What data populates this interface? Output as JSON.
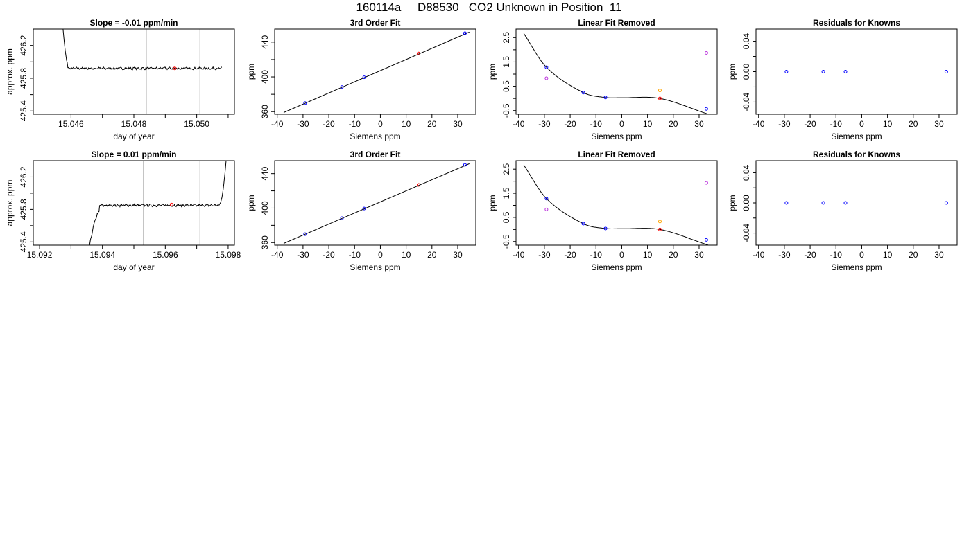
{
  "figure": {
    "title": "160114a     D88530   CO2 Unknown in Position  11"
  },
  "colors": {
    "blue": "#0000ff",
    "red": "#ff0000",
    "orange": "#ffa500",
    "magenta": "#bb33dd",
    "gray": "#bebebe",
    "black": "#000000"
  },
  "chart_data": [
    {
      "panel": "r1c1",
      "type": "line",
      "title": "Slope =  -0.01  ppm/min",
      "xlabel": "day of year",
      "ylabel": "approx. ppm",
      "xlim": [
        15.0448,
        15.0512
      ],
      "ylim": [
        425.36,
        426.4
      ],
      "xticks": [
        15.046,
        15.047,
        15.048,
        15.049,
        15.05,
        15.051
      ],
      "xtick_labels": [
        "15.046",
        "",
        "15.048",
        "",
        "15.050",
        ""
      ],
      "yticks": [
        425.4,
        425.6,
        425.8,
        426.0,
        426.2
      ],
      "ytick_labels": [
        "425.4",
        "",
        "425.8",
        "",
        "426.2"
      ],
      "vlines": [
        15.0484,
        15.0501
      ],
      "line": {
        "x0": 15.0456,
        "x1": 15.0508,
        "rise": {
          "to": 15.0459,
          "level": 425.92
        },
        "fall": {
          "from": 15.0508,
          "level": 425.92
        },
        "plateau": 425.92,
        "noise": 0.012
      },
      "marker": {
        "x": 15.0493,
        "y": 425.92,
        "color": "red"
      }
    },
    {
      "panel": "r1c2",
      "type": "scatter",
      "title": "3rd Order Fit",
      "xlabel": "Siemens ppm",
      "ylabel": "ppm",
      "xlim": [
        -41,
        37
      ],
      "ylim": [
        357,
        455
      ],
      "xticks": [
        -40,
        -30,
        -20,
        -10,
        0,
        10,
        20,
        30
      ],
      "yticks": [
        360,
        380,
        400,
        420,
        440
      ],
      "ytick_labels": [
        "360",
        "",
        "400",
        "",
        "440"
      ],
      "fit_line": [
        [
          -37.5,
          359
        ],
        [
          34.5,
          451.5
        ]
      ],
      "points": [
        {
          "x": -29.2,
          "y": 369.8,
          "color": "blue"
        },
        {
          "x": -14.9,
          "y": 388.3,
          "color": "blue"
        },
        {
          "x": -6.3,
          "y": 399.5,
          "color": "blue"
        },
        {
          "x": 14.8,
          "y": 426.9,
          "color": "red"
        },
        {
          "x": 32.8,
          "y": 450.2,
          "color": "blue"
        }
      ]
    },
    {
      "panel": "r1c3",
      "type": "scatter",
      "title": "Linear Fit Removed",
      "xlabel": "Siemens ppm",
      "ylabel": "ppm",
      "xlim": [
        -41,
        37
      ],
      "ylim": [
        -0.65,
        2.85
      ],
      "xticks": [
        -40,
        -30,
        -20,
        -10,
        0,
        10,
        20,
        30
      ],
      "yticks": [
        -0.5,
        0,
        0.5,
        1,
        1.5,
        2,
        2.5
      ],
      "ytick_labels": [
        "-0.5",
        "",
        "0.5",
        "",
        "1.5",
        "",
        "2.5"
      ],
      "curve": {
        "xmin": -38,
        "xmax": 33.5,
        "knots": [
          [
            -38,
            2.67
          ],
          [
            -29.2,
            1.28
          ],
          [
            -14.9,
            0.24
          ],
          [
            -6.3,
            0.04
          ],
          [
            0,
            0.03
          ],
          [
            14.8,
            0.0
          ],
          [
            32.8,
            -0.62
          ]
        ]
      },
      "points": [
        {
          "x": -29.2,
          "y": 1.28,
          "color": "blue"
        },
        {
          "x": -29.2,
          "y": 0.83,
          "color": "magenta"
        },
        {
          "x": -14.9,
          "y": 0.24,
          "color": "blue"
        },
        {
          "x": -6.3,
          "y": 0.04,
          "color": "blue"
        },
        {
          "x": 14.8,
          "y": 0.33,
          "color": "orange"
        },
        {
          "x": 14.8,
          "y": 0.0,
          "color": "red"
        },
        {
          "x": 32.8,
          "y": 1.87,
          "color": "magenta"
        },
        {
          "x": 32.8,
          "y": -0.43,
          "color": "blue"
        }
      ]
    },
    {
      "panel": "r1c4",
      "type": "scatter",
      "title": "Residuals for Knowns",
      "xlabel": "Siemens ppm",
      "ylabel": "ppm",
      "xlim": [
        -41,
        37
      ],
      "ylim": [
        -0.056,
        0.056
      ],
      "xticks": [
        -40,
        -30,
        -20,
        -10,
        0,
        10,
        20,
        30
      ],
      "yticks": [
        -0.04,
        -0.02,
        0.0,
        0.02,
        0.04
      ],
      "ytick_labels": [
        "-0.04",
        "",
        "0.00",
        "",
        "0.04"
      ],
      "points": [
        {
          "x": -29.2,
          "y": 0.0,
          "color": "blue"
        },
        {
          "x": -14.9,
          "y": 0.0,
          "color": "blue"
        },
        {
          "x": -6.3,
          "y": 0.0,
          "color": "blue"
        },
        {
          "x": 32.8,
          "y": 0.0,
          "color": "blue"
        }
      ]
    },
    {
      "panel": "r2c1",
      "type": "line",
      "title": "Slope =  0.01  ppm/min",
      "xlabel": "day of year",
      "ylabel": "approx. ppm",
      "xlim": [
        15.0918,
        15.0982
      ],
      "ylim": [
        425.36,
        426.4
      ],
      "xticks": [
        15.092,
        15.093,
        15.094,
        15.095,
        15.096,
        15.097,
        15.098
      ],
      "xtick_labels": [
        "15.092",
        "",
        "15.094",
        "",
        "15.096",
        "",
        "15.098"
      ],
      "yticks": [
        425.4,
        425.6,
        425.8,
        426.0,
        426.2
      ],
      "ytick_labels": [
        "425.4",
        "",
        "425.8",
        "",
        "426.2"
      ],
      "vlines": [
        15.0953,
        15.0971
      ],
      "line": {
        "x0": 15.0933,
        "x1": 15.0981,
        "rise": {
          "to": 15.0939,
          "level": 425.85
        },
        "fall": {
          "from": 15.0977,
          "level": 425.85
        },
        "plateau": 425.85,
        "noise": 0.012,
        "tail_up": true
      },
      "marker": {
        "x": 15.0962,
        "y": 425.86,
        "color": "red"
      }
    },
    {
      "panel": "r2c2",
      "type": "scatter",
      "title": "3rd Order Fit",
      "xlabel": "Siemens ppm",
      "ylabel": "ppm",
      "xlim": [
        -41,
        37
      ],
      "ylim": [
        357,
        455
      ],
      "xticks": [
        -40,
        -30,
        -20,
        -10,
        0,
        10,
        20,
        30
      ],
      "yticks": [
        360,
        380,
        400,
        420,
        440
      ],
      "ytick_labels": [
        "360",
        "",
        "400",
        "",
        "440"
      ],
      "fit_line": [
        [
          -37.5,
          359
        ],
        [
          34.5,
          451.5
        ]
      ],
      "points": [
        {
          "x": -29.2,
          "y": 369.8,
          "color": "blue"
        },
        {
          "x": -14.9,
          "y": 388.3,
          "color": "blue"
        },
        {
          "x": -6.3,
          "y": 399.5,
          "color": "blue"
        },
        {
          "x": 14.8,
          "y": 426.9,
          "color": "red"
        },
        {
          "x": 32.8,
          "y": 450.2,
          "color": "blue"
        }
      ]
    },
    {
      "panel": "r2c3",
      "type": "scatter",
      "title": "Linear Fit Removed",
      "xlabel": "Siemens ppm",
      "ylabel": "ppm",
      "xlim": [
        -41,
        37
      ],
      "ylim": [
        -0.65,
        2.85
      ],
      "xticks": [
        -40,
        -30,
        -20,
        -10,
        0,
        10,
        20,
        30
      ],
      "yticks": [
        -0.5,
        0,
        0.5,
        1,
        1.5,
        2,
        2.5
      ],
      "ytick_labels": [
        "-0.5",
        "",
        "0.5",
        "",
        "1.5",
        "",
        "2.5"
      ],
      "curve": {
        "xmin": -38,
        "xmax": 33.5,
        "knots": [
          [
            -38,
            2.67
          ],
          [
            -29.2,
            1.28
          ],
          [
            -14.9,
            0.24
          ],
          [
            -6.3,
            0.04
          ],
          [
            0,
            0.03
          ],
          [
            14.8,
            0.0
          ],
          [
            32.8,
            -0.62
          ]
        ]
      },
      "points": [
        {
          "x": -29.2,
          "y": 1.28,
          "color": "blue"
        },
        {
          "x": -29.2,
          "y": 0.83,
          "color": "magenta"
        },
        {
          "x": -14.9,
          "y": 0.24,
          "color": "blue"
        },
        {
          "x": -6.3,
          "y": 0.04,
          "color": "blue"
        },
        {
          "x": 14.8,
          "y": 0.33,
          "color": "orange"
        },
        {
          "x": 14.8,
          "y": 0.0,
          "color": "red"
        },
        {
          "x": 32.8,
          "y": 1.93,
          "color": "magenta"
        },
        {
          "x": 32.8,
          "y": -0.43,
          "color": "blue"
        }
      ]
    },
    {
      "panel": "r2c4",
      "type": "scatter",
      "title": "Residuals for Knowns",
      "xlabel": "Siemens ppm",
      "ylabel": "ppm",
      "xlim": [
        -41,
        37
      ],
      "ylim": [
        -0.056,
        0.056
      ],
      "xticks": [
        -40,
        -30,
        -20,
        -10,
        0,
        10,
        20,
        30
      ],
      "yticks": [
        -0.04,
        -0.02,
        0.0,
        0.02,
        0.04
      ],
      "ytick_labels": [
        "-0.04",
        "",
        "0.00",
        "",
        "0.04"
      ],
      "points": [
        {
          "x": -29.2,
          "y": 0.0,
          "color": "blue"
        },
        {
          "x": -14.9,
          "y": 0.0,
          "color": "blue"
        },
        {
          "x": -6.3,
          "y": 0.0,
          "color": "blue"
        },
        {
          "x": 32.8,
          "y": 0.0,
          "color": "blue"
        }
      ]
    }
  ]
}
